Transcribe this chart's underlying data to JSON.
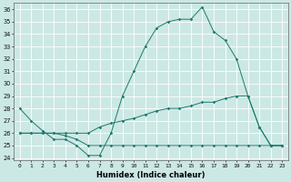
{
  "title": "",
  "xlabel": "Humidex (Indice chaleur)",
  "bg_color": "#cce8e4",
  "line_color": "#1a7a6e",
  "grid_color": "#ffffff",
  "xlim": [
    -0.5,
    23.5
  ],
  "ylim": [
    23.8,
    36.5
  ],
  "yticks": [
    24,
    25,
    26,
    27,
    28,
    29,
    30,
    31,
    32,
    33,
    34,
    35,
    36
  ],
  "xticks": [
    0,
    1,
    2,
    3,
    4,
    5,
    6,
    7,
    8,
    9,
    10,
    11,
    12,
    13,
    14,
    15,
    16,
    17,
    18,
    19,
    20,
    21,
    22,
    23
  ],
  "series": [
    {
      "x": [
        0,
        1,
        2,
        3,
        4,
        5,
        6,
        7,
        8,
        9,
        10,
        11,
        12,
        13,
        14,
        15,
        16,
        17,
        18,
        19,
        20,
        21,
        22,
        23
      ],
      "y": [
        28,
        27,
        26.2,
        25.5,
        25.5,
        25,
        24.2,
        24.2,
        26,
        29,
        31,
        33,
        34.5,
        35,
        35.2,
        35.2,
        36.2,
        34.2,
        33.5,
        32,
        29,
        26.5,
        25,
        25
      ]
    },
    {
      "x": [
        0,
        1,
        2,
        3,
        4,
        5,
        6,
        7,
        8,
        9,
        10,
        11,
        12,
        13,
        14,
        15,
        16,
        17,
        18,
        19,
        20,
        21,
        22,
        23
      ],
      "y": [
        26,
        26,
        26,
        26,
        25.8,
        25.5,
        25,
        25,
        25,
        25,
        25,
        25,
        25,
        25,
        25,
        25,
        25,
        25,
        25,
        25,
        25,
        25,
        25,
        25
      ]
    },
    {
      "x": [
        0,
        1,
        2,
        3,
        4,
        5,
        6,
        7,
        8,
        9,
        10,
        11,
        12,
        13,
        14,
        15,
        16,
        17,
        18,
        19,
        20,
        21,
        22,
        23
      ],
      "y": [
        26,
        26,
        26,
        26,
        26,
        26,
        26,
        26.5,
        26.8,
        27,
        27.2,
        27.5,
        27.8,
        28,
        28,
        28.2,
        28.5,
        28.5,
        28.8,
        29,
        29,
        26.5,
        25,
        25
      ]
    }
  ]
}
